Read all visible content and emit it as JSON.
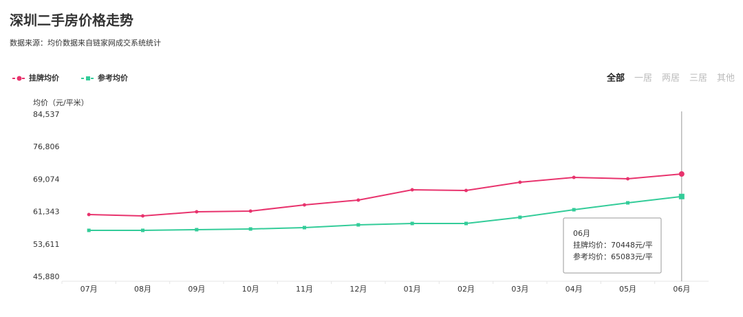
{
  "chart_data": {
    "type": "line",
    "title": "深圳二手房价格走势",
    "subtitle": "数据来源：均价数据来自链家网成交系统统计",
    "y_label": "均价（元/平米）",
    "tabs": [
      "全部",
      "一居",
      "两居",
      "三居",
      "其他"
    ],
    "categories": [
      "07月",
      "08月",
      "09月",
      "10月",
      "11月",
      "12月",
      "01月",
      "02月",
      "03月",
      "04月",
      "05月",
      "06月"
    ],
    "series": [
      {
        "name": "挂牌均价",
        "color": "#e8336d",
        "marker": "circle",
        "values": [
          60786,
          60458,
          61440,
          61605,
          63079,
          64226,
          66683,
          66519,
          68484,
          69631,
          69303,
          70448
        ]
      },
      {
        "name": "参考均价",
        "color": "#33cc99",
        "marker": "square",
        "values": [
          57018,
          57018,
          57182,
          57346,
          57674,
          58329,
          58657,
          58657,
          60131,
          61932,
          63570,
          65083
        ]
      }
    ],
    "ylim": [
      45880,
      84537
    ],
    "yticks": [
      {
        "value": 45880,
        "label": "45,880"
      },
      {
        "value": 53611,
        "label": "53,611"
      },
      {
        "value": 61343,
        "label": "61,343"
      },
      {
        "value": 69074,
        "label": "69,074"
      },
      {
        "value": 76806,
        "label": "76,806"
      },
      {
        "value": 84537,
        "label": "84,537"
      }
    ],
    "grid": false,
    "tooltip": {
      "title": "06月",
      "lines": [
        "挂牌均价：70448元/平",
        "参考均价：65083元/平"
      ]
    }
  }
}
